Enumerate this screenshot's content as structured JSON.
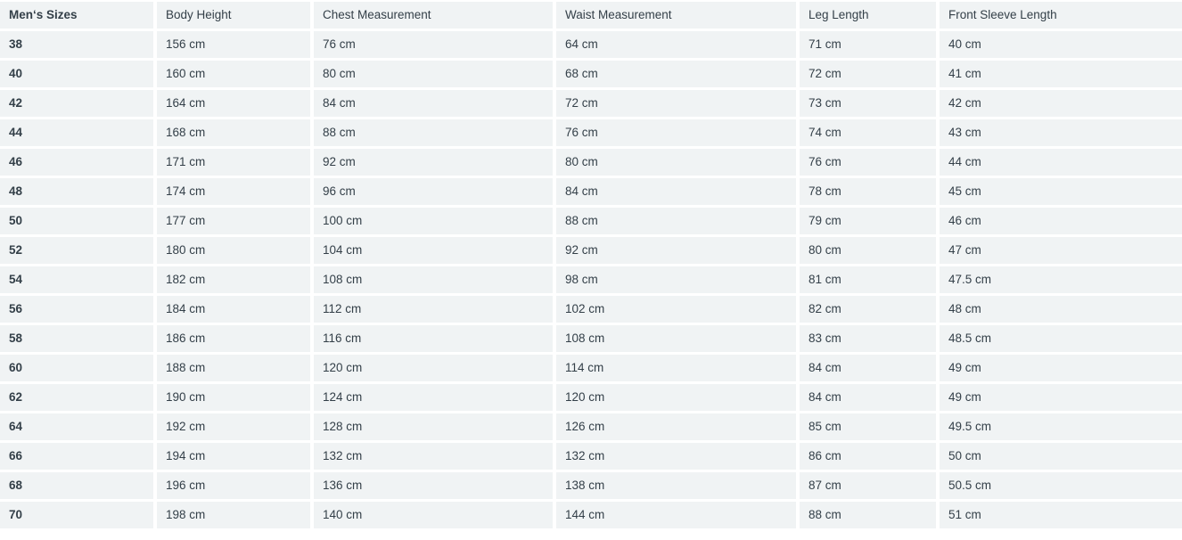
{
  "styles": {
    "cell_background": "#f0f3f4",
    "text_color": "#333f48",
    "gap_color": "#ffffff"
  },
  "chart_data": {
    "type": "table",
    "columns": [
      "Men‘s Sizes",
      "Body Height",
      "Chest Measurement",
      "Waist Measurement",
      "Leg Length",
      "Front Sleeve Length"
    ],
    "rows": [
      [
        "38",
        "156 cm",
        "76 cm",
        "64 cm",
        "71 cm",
        "40 cm"
      ],
      [
        "40",
        "160 cm",
        "80 cm",
        "68 cm",
        "72 cm",
        "41 cm"
      ],
      [
        "42",
        "164 cm",
        "84 cm",
        "72 cm",
        "73 cm",
        "42 cm"
      ],
      [
        "44",
        "168 cm",
        "88 cm",
        "76 cm",
        "74 cm",
        "43 cm"
      ],
      [
        "46",
        "171 cm",
        "92 cm",
        "80 cm",
        "76 cm",
        "44 cm"
      ],
      [
        "48",
        "174 cm",
        "96 cm",
        "84 cm",
        "78 cm",
        "45 cm"
      ],
      [
        "50",
        "177 cm",
        "100 cm",
        "88 cm",
        "79 cm",
        "46 cm"
      ],
      [
        "52",
        "180 cm",
        "104 cm",
        "92 cm",
        "80 cm",
        "47 cm"
      ],
      [
        "54",
        "182 cm",
        "108 cm",
        "98 cm",
        "81 cm",
        "47.5 cm"
      ],
      [
        "56",
        "184 cm",
        "112 cm",
        "102 cm",
        "82 cm",
        "48 cm"
      ],
      [
        "58",
        "186 cm",
        "116 cm",
        "108 cm",
        "83 cm",
        "48.5 cm"
      ],
      [
        "60",
        "188 cm",
        "120 cm",
        "114 cm",
        "84 cm",
        "49 cm"
      ],
      [
        "62",
        "190 cm",
        "124 cm",
        "120 cm",
        "84 cm",
        "49 cm"
      ],
      [
        "64",
        "192 cm",
        "128 cm",
        "126 cm",
        "85 cm",
        "49.5 cm"
      ],
      [
        "66",
        "194 cm",
        "132 cm",
        "132 cm",
        "86 cm",
        "50 cm"
      ],
      [
        "68",
        "196 cm",
        "136 cm",
        "138 cm",
        "87 cm",
        "50.5 cm"
      ],
      [
        "70",
        "198 cm",
        "140 cm",
        "144 cm",
        "88 cm",
        "51 cm"
      ]
    ]
  }
}
